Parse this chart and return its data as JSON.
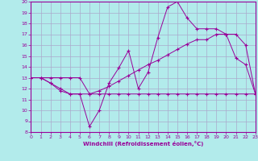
{
  "xlabel": "Windchill (Refroidissement éolien,°C)",
  "bg_color": "#b2ebeb",
  "line_color": "#990099",
  "grid_color": "#aaaacc",
  "ylim": [
    8,
    20
  ],
  "xlim": [
    0,
    23
  ],
  "yticks": [
    8,
    9,
    10,
    11,
    12,
    13,
    14,
    15,
    16,
    17,
    18,
    19,
    20
  ],
  "xticks": [
    0,
    1,
    2,
    3,
    4,
    5,
    6,
    7,
    8,
    9,
    10,
    11,
    12,
    13,
    14,
    15,
    16,
    17,
    18,
    19,
    20,
    21,
    22,
    23
  ],
  "line1_x": [
    0,
    1,
    2,
    3,
    4,
    5,
    6,
    7,
    8,
    9,
    10,
    11,
    12,
    13,
    14,
    15,
    16,
    17,
    18,
    19,
    20,
    21,
    22,
    23
  ],
  "line1_y": [
    13,
    13,
    12.5,
    12,
    11.5,
    11.5,
    8.5,
    10,
    12.5,
    13.9,
    15.5,
    12,
    13.5,
    16.7,
    19.5,
    20,
    18.5,
    17.5,
    17.5,
    17.5,
    17,
    14.8,
    14.2,
    11.5
  ],
  "line2_x": [
    0,
    1,
    2,
    3,
    4,
    5,
    6,
    7,
    8,
    9,
    10,
    11,
    12,
    13,
    14,
    15,
    16,
    17,
    18,
    19,
    20,
    21,
    22,
    23
  ],
  "line2_y": [
    13,
    13,
    13,
    13,
    13,
    13,
    11.5,
    11.8,
    12.2,
    12.7,
    13.2,
    13.7,
    14.2,
    14.6,
    15.1,
    15.6,
    16.1,
    16.5,
    16.5,
    17.0,
    17.0,
    17.0,
    16.0,
    11.5
  ],
  "line3_x": [
    0,
    1,
    2,
    3,
    4,
    5,
    6,
    7,
    8,
    9,
    10,
    11,
    12,
    13,
    14,
    15,
    16,
    17,
    18,
    19,
    20,
    21,
    22,
    23
  ],
  "line3_y": [
    13,
    13,
    12.5,
    11.8,
    11.5,
    11.5,
    11.5,
    11.5,
    11.5,
    11.5,
    11.5,
    11.5,
    11.5,
    11.5,
    11.5,
    11.5,
    11.5,
    11.5,
    11.5,
    11.5,
    11.5,
    11.5,
    11.5,
    11.5
  ]
}
